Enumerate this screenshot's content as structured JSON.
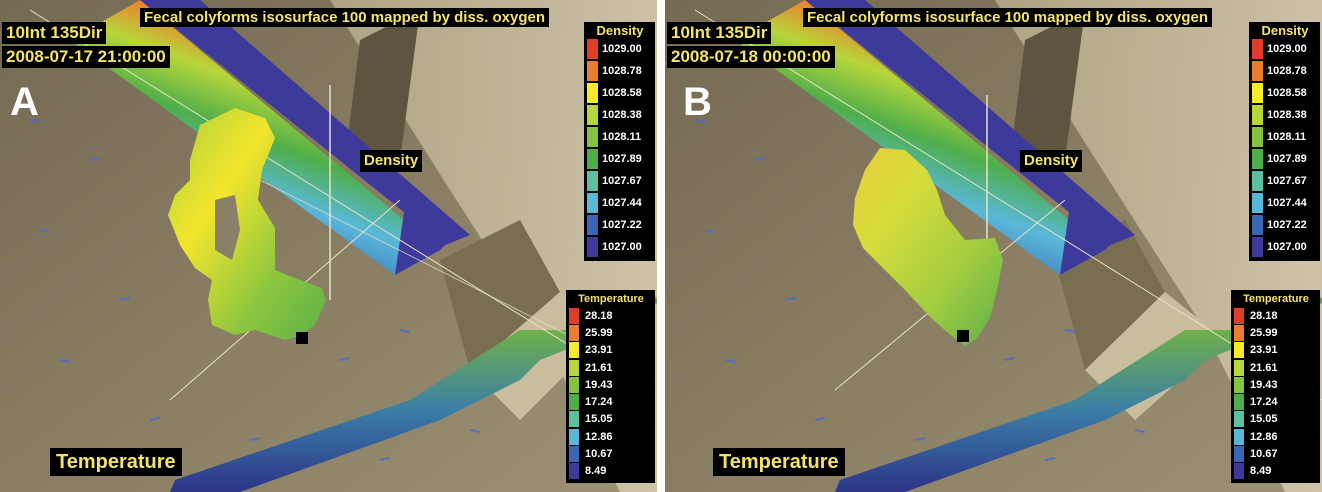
{
  "panels": [
    {
      "id": "A",
      "letter": "A",
      "title": "Fecal colyforms isosurface 100 mapped by diss. oxygen",
      "run_label": "10Int 135Dir",
      "timestamp": "2008-07-17 21:00:00",
      "density_slice_label": "Density",
      "temperature_slice_label": "Temperature"
    },
    {
      "id": "B",
      "letter": "B",
      "title": "Fecal colyforms isosurface 100 mapped by diss. oxygen",
      "run_label": "10Int 135Dir",
      "timestamp": "2008-07-18 00:00:00",
      "density_slice_label": "Density",
      "temperature_slice_label": "Temperature"
    }
  ],
  "density_legend": {
    "title": "Density",
    "entries": [
      {
        "value": "1029.00",
        "color": "#e03c2a"
      },
      {
        "value": "1028.78",
        "color": "#ec7d2f"
      },
      {
        "value": "1028.58",
        "color": "#f7ea28"
      },
      {
        "value": "1028.38",
        "color": "#b6d63a"
      },
      {
        "value": "1028.11",
        "color": "#86c440"
      },
      {
        "value": "1027.89",
        "color": "#4fae4a"
      },
      {
        "value": "1027.67",
        "color": "#5cc0a0"
      },
      {
        "value": "1027.44",
        "color": "#58b8d8"
      },
      {
        "value": "1027.22",
        "color": "#3a66b8"
      },
      {
        "value": "1027.00",
        "color": "#3e3a9c"
      }
    ]
  },
  "temperature_legend": {
    "title": "Temperature",
    "entries": [
      {
        "value": "28.18",
        "color": "#e03c2a"
      },
      {
        "value": "25.99",
        "color": "#ec7d2f"
      },
      {
        "value": "23.91",
        "color": "#f7ea28"
      },
      {
        "value": "21.61",
        "color": "#b6d63a"
      },
      {
        "value": "19.43",
        "color": "#86c440"
      },
      {
        "value": "17.24",
        "color": "#4fae4a"
      },
      {
        "value": "15.05",
        "color": "#5cc0a0"
      },
      {
        "value": "12.86",
        "color": "#58b8d8"
      },
      {
        "value": "10.67",
        "color": "#3a66b8"
      },
      {
        "value": "8.49",
        "color": "#3e3a9c"
      }
    ]
  }
}
